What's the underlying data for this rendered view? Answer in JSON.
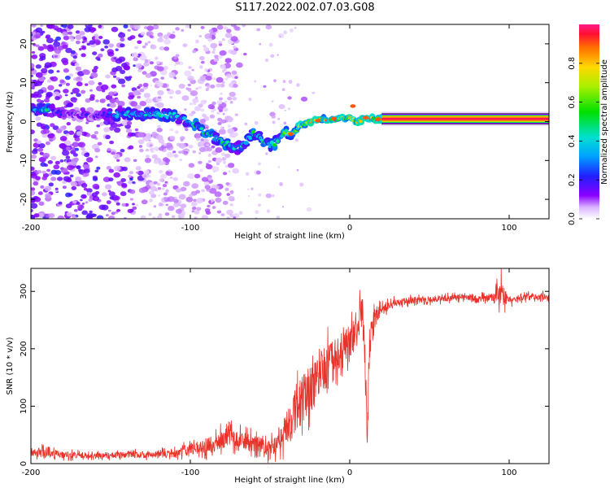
{
  "title": "S117.2022.002.07.03.G08",
  "chart_data": [
    {
      "type": "heatmap",
      "title": "S117.2022.002.07.03.G08",
      "xlabel": "Height of straight line (km)",
      "ylabel": "Frequency (Hz)",
      "xlim": [
        -200,
        125
      ],
      "ylim": [
        -25,
        25
      ],
      "xticks": [
        -200,
        -100,
        0,
        100
      ],
      "yticks": [
        -20,
        -10,
        0,
        10,
        20
      ],
      "colorbar": {
        "label": "Normalized spectral amplitude",
        "range": [
          0,
          1
        ],
        "ticks": [
          0.0,
          0.2,
          0.4,
          0.6,
          0.8
        ]
      },
      "ridge": {
        "x": [
          -200,
          -190,
          -180,
          -160,
          -140,
          -130,
          -120,
          -110,
          -100,
          -90,
          -80,
          -70,
          -60,
          -50,
          -45,
          -40,
          -35,
          -30,
          -25,
          -20,
          -10,
          0,
          5,
          10,
          20,
          50,
          100,
          125
        ],
        "y": [
          3,
          3,
          2,
          1.5,
          2,
          2,
          2,
          1.5,
          0,
          -3,
          -5,
          -7,
          -3,
          -6,
          -5,
          -3,
          -3,
          -1,
          0,
          0.5,
          0.5,
          1,
          0,
          1,
          0.5,
          0.5,
          0.5,
          0.5
        ],
        "strength": [
          0.3,
          0.5,
          0.2,
          0.2,
          0.4,
          0.4,
          0.5,
          0.4,
          0.5,
          0.5,
          0.5,
          0.4,
          0.5,
          0.5,
          0.5,
          0.6,
          0.7,
          0.7,
          0.8,
          0.8,
          0.9,
          0.8,
          0.9,
          0.9,
          1,
          1,
          1,
          1
        ]
      }
    },
    {
      "type": "line",
      "xlabel": "Height of straight line (km)",
      "ylabel": "SNR (10 * v/v)",
      "xlim": [
        -200,
        125
      ],
      "ylim": [
        0,
        340
      ],
      "xticks": [
        -200,
        -100,
        0,
        100
      ],
      "yticks": [
        0,
        100,
        200,
        300
      ],
      "color": "#e8322a",
      "x": [
        -200,
        -190,
        -180,
        -160,
        -140,
        -120,
        -110,
        -100,
        -90,
        -80,
        -75,
        -70,
        -60,
        -50,
        -45,
        -40,
        -35,
        -30,
        -25,
        -20,
        -15,
        -10,
        -5,
        0,
        5,
        8,
        10,
        11,
        12,
        15,
        20,
        25,
        30,
        40,
        50,
        60,
        70,
        80,
        90,
        95,
        100,
        110,
        125
      ],
      "y": [
        18,
        20,
        15,
        14,
        15,
        16,
        18,
        25,
        30,
        40,
        55,
        40,
        35,
        25,
        35,
        60,
        85,
        110,
        125,
        150,
        165,
        175,
        195,
        215,
        230,
        280,
        150,
        40,
        180,
        250,
        270,
        275,
        280,
        285,
        285,
        288,
        290,
        288,
        290,
        300,
        285,
        290,
        290
      ],
      "noise": [
        8,
        15,
        8,
        7,
        8,
        9,
        10,
        15,
        20,
        25,
        35,
        25,
        20,
        20,
        25,
        45,
        55,
        60,
        60,
        60,
        55,
        55,
        50,
        45,
        40,
        50,
        60,
        20,
        40,
        25,
        15,
        12,
        10,
        8,
        8,
        8,
        8,
        8,
        10,
        35,
        10,
        8,
        8
      ]
    }
  ]
}
